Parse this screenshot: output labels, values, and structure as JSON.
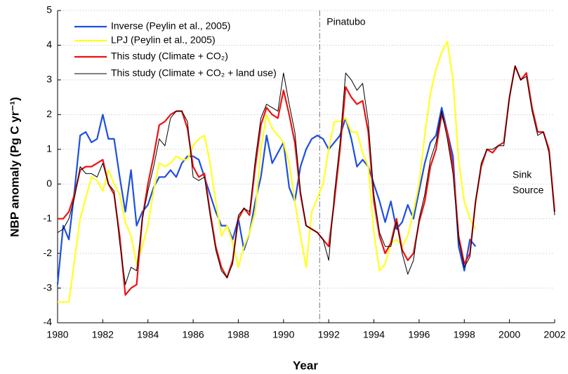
{
  "chart_data": {
    "type": "line",
    "x_label": "Year",
    "y_label": "NBP anomaly (Pg C yr⁻¹)",
    "xlim": [
      1980,
      2002
    ],
    "ylim": [
      -4,
      5
    ],
    "xticks": [
      1980,
      1982,
      1984,
      1986,
      1988,
      1990,
      1992,
      1994,
      1996,
      1998,
      2000,
      2002
    ],
    "yticks": [
      -4,
      -3,
      -2,
      -1,
      0,
      1,
      2,
      3,
      4,
      5
    ],
    "grid": true,
    "legend": "top-left",
    "annotations": [
      {
        "text": "Pinatubo",
        "x": 1991.6
      },
      {
        "text": "Sink"
      },
      {
        "text": "Source"
      }
    ],
    "x": [
      1980,
      1980.25,
      1980.5,
      1980.75,
      1981,
      1981.25,
      1981.5,
      1981.75,
      1982,
      1982.25,
      1982.5,
      1982.75,
      1983,
      1983.25,
      1983.5,
      1983.75,
      1984,
      1984.25,
      1984.5,
      1984.75,
      1985,
      1985.25,
      1985.5,
      1985.75,
      1986,
      1986.25,
      1986.5,
      1986.75,
      1987,
      1987.25,
      1987.5,
      1987.75,
      1988,
      1988.25,
      1988.5,
      1988.75,
      1989,
      1989.25,
      1989.5,
      1989.75,
      1990,
      1990.25,
      1990.5,
      1990.75,
      1991,
      1991.25,
      1991.5,
      1991.75,
      1992,
      1992.25,
      1992.5,
      1992.75,
      1993,
      1993.25,
      1993.5,
      1993.75,
      1994,
      1994.25,
      1994.5,
      1994.75,
      1995,
      1995.25,
      1995.5,
      1995.75,
      1996,
      1996.25,
      1996.5,
      1996.75,
      1997,
      1997.25,
      1997.5,
      1997.75,
      1998,
      1998.25,
      1998.5,
      1998.75,
      1999,
      1999.25,
      1999.5,
      1999.75,
      2000,
      2000.25,
      2000.5,
      2000.75,
      2001,
      2001.25,
      2001.5,
      2001.75,
      2002
    ],
    "series": [
      {
        "name": "Inverse (Peylin et al., 2005)",
        "color": "#1f4fe0",
        "width": 2.2,
        "values": [
          -2.9,
          -1.2,
          -1.6,
          -0.2,
          1.4,
          1.5,
          1.2,
          1.3,
          2.0,
          1.3,
          1.3,
          0.2,
          -0.8,
          0.4,
          -1.2,
          -0.8,
          -0.6,
          -0.1,
          0.2,
          0.2,
          0.4,
          0.2,
          0.6,
          0.8,
          0.8,
          0.7,
          0.2,
          -0.3,
          -0.8,
          -1.2,
          -1.2,
          -1.6,
          -1.0,
          -1.9,
          -1.4,
          -0.5,
          0.2,
          1.4,
          0.6,
          0.9,
          1.2,
          -0.1,
          -0.5,
          0.5,
          1.0,
          1.3,
          1.4,
          1.3,
          1.0,
          1.2,
          1.4,
          1.9,
          1.3,
          0.5,
          0.7,
          0.5,
          0.0,
          -0.5,
          -1.1,
          -0.5,
          -1.3,
          -1.1,
          -0.6,
          -1.0,
          -0.2,
          0.6,
          1.2,
          1.4,
          2.2,
          1.5,
          0.8,
          -1.8,
          -2.5,
          -1.6,
          -1.8,
          null,
          null,
          null,
          null,
          null,
          null,
          null,
          null,
          null,
          null,
          null,
          null,
          null,
          null
        ]
      },
      {
        "name": "LPJ (Peylin et al., 2005)",
        "color": "#ffff22",
        "width": 2.2,
        "values": [
          -3.4,
          -3.4,
          -3.4,
          -2.2,
          -1.0,
          -0.4,
          0.2,
          0.1,
          -0.2,
          0.4,
          0.0,
          -0.3,
          -1.1,
          -1.5,
          -2.3,
          -1.8,
          -1.2,
          -0.2,
          0.6,
          0.5,
          0.6,
          0.8,
          0.7,
          0.7,
          1.1,
          1.3,
          1.4,
          0.6,
          -0.5,
          -1.5,
          -1.2,
          -1.7,
          -2.4,
          -1.8,
          -1.4,
          -0.8,
          1.0,
          2.0,
          1.6,
          1.4,
          1.2,
          0.6,
          -0.5,
          -1.5,
          -2.4,
          -0.8,
          -0.4,
          0.0,
          1.0,
          1.8,
          1.8,
          1.9,
          1.5,
          1.5,
          0.9,
          0.5,
          -1.4,
          -2.5,
          -2.3,
          -1.7,
          -1.6,
          -1.8,
          -1.5,
          -0.8,
          0.0,
          1.4,
          2.6,
          3.3,
          3.8,
          4.1,
          3.0,
          0.7,
          -0.5,
          -1.0,
          -1.3,
          null,
          null,
          null,
          null,
          null,
          null,
          null,
          null,
          null,
          null,
          null,
          null,
          null,
          null
        ]
      },
      {
        "name": "This study (Climate + CO₂)",
        "color": "#ee1111",
        "width": 2.2,
        "values": [
          -1.0,
          -1.0,
          -0.8,
          -0.3,
          0.4,
          0.5,
          0.5,
          0.6,
          0.7,
          0.0,
          -0.3,
          -1.5,
          -3.2,
          -3.0,
          -2.9,
          -1.0,
          0.0,
          0.8,
          1.7,
          1.8,
          2.0,
          2.1,
          2.1,
          1.6,
          0.5,
          0.2,
          0.3,
          -0.8,
          -1.8,
          -2.4,
          -2.7,
          -2.2,
          -1.0,
          -0.7,
          -0.9,
          0.5,
          1.7,
          2.2,
          2.0,
          1.9,
          2.7,
          2.0,
          1.2,
          -0.3,
          -1.2,
          -1.3,
          -1.4,
          -1.6,
          -1.8,
          -0.5,
          1.0,
          2.8,
          2.5,
          2.3,
          2.4,
          1.5,
          -0.5,
          -1.5,
          -2.0,
          -1.7,
          -1.0,
          -1.9,
          -2.2,
          -2.0,
          -1.1,
          -0.5,
          0.5,
          1.0,
          2.0,
          1.5,
          0.5,
          -1.5,
          -2.3,
          -2.0,
          -0.5,
          0.5,
          1.0,
          0.9,
          1.1,
          1.2,
          2.5,
          3.4,
          3.0,
          3.2,
          2.2,
          1.5,
          1.5,
          1.0,
          -0.8
        ]
      },
      {
        "name": "This study (Climate + CO₂ + land use)",
        "color": "#000000",
        "width": 1,
        "values": [
          -1.4,
          -1.3,
          -1.0,
          -0.4,
          0.5,
          0.3,
          0.3,
          0.2,
          0.6,
          0.0,
          -0.2,
          -1.7,
          -2.9,
          -2.4,
          -2.5,
          -1.0,
          -0.2,
          0.5,
          1.3,
          1.1,
          1.9,
          2.1,
          2.1,
          1.8,
          0.2,
          0.1,
          0.2,
          -0.9,
          -1.9,
          -2.5,
          -2.7,
          -2.3,
          -0.9,
          -0.7,
          -0.8,
          0.7,
          1.9,
          2.3,
          2.2,
          2.1,
          3.2,
          2.3,
          1.5,
          -0.2,
          -1.2,
          -1.3,
          -1.4,
          -1.6,
          -2.2,
          -0.3,
          1.2,
          3.2,
          3.0,
          2.7,
          2.9,
          1.8,
          -0.3,
          -1.4,
          -1.8,
          -1.8,
          -1.1,
          -2.0,
          -2.6,
          -2.2,
          -1.0,
          -0.3,
          0.7,
          1.2,
          2.1,
          1.3,
          0.3,
          -1.6,
          -2.4,
          -2.1,
          -0.5,
          0.6,
          1.0,
          1.0,
          1.1,
          1.1,
          2.5,
          3.4,
          3.0,
          3.1,
          2.1,
          1.4,
          1.5,
          0.9,
          -0.9
        ]
      }
    ]
  }
}
